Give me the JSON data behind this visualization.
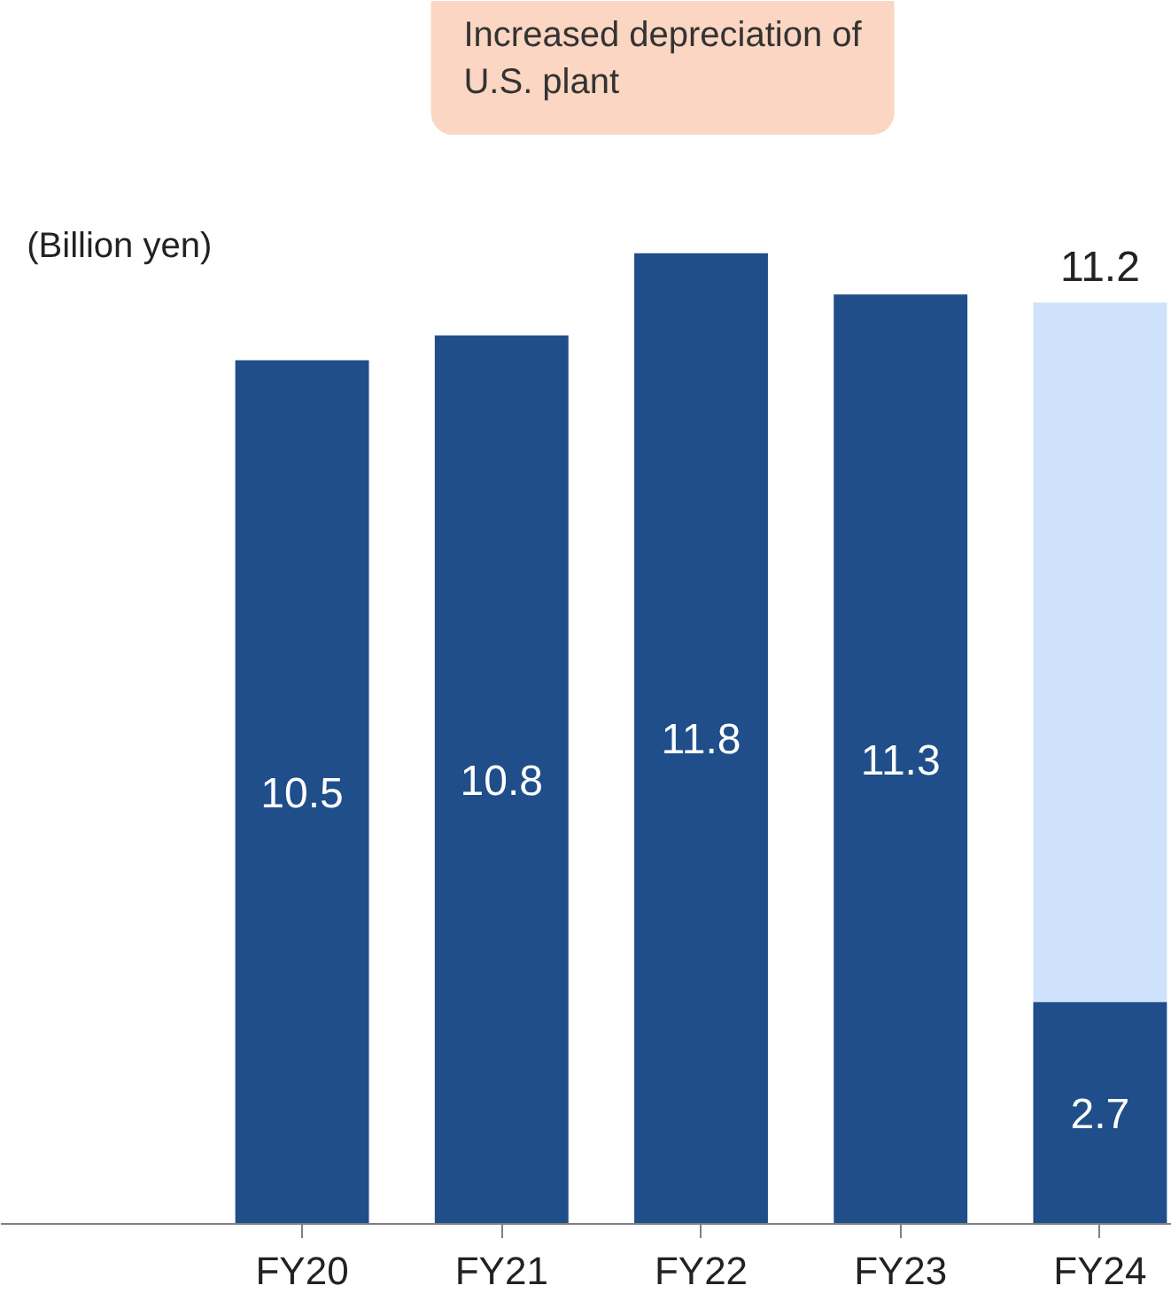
{
  "chart_data": {
    "type": "bar",
    "stacked": true,
    "ylabel": "(Billion yen)",
    "categories": [
      "FY20",
      "FY21",
      "FY22",
      "FY23",
      "FY24"
    ],
    "series": [
      {
        "color": "#1f4e8a",
        "values": [
          10.5,
          10.8,
          11.8,
          11.3,
          2.7
        ],
        "value_labels": [
          "10.5",
          "10.8",
          "11.8",
          "11.3",
          "2.7"
        ]
      },
      {
        "color": "#cfe2fb",
        "values": [
          null,
          null,
          null,
          null,
          8.5
        ]
      }
    ],
    "totals": [
      null,
      null,
      null,
      null,
      "11.2"
    ],
    "annotations": [
      "Increased depreciation of\nU.S. plant"
    ],
    "grid": false
  }
}
